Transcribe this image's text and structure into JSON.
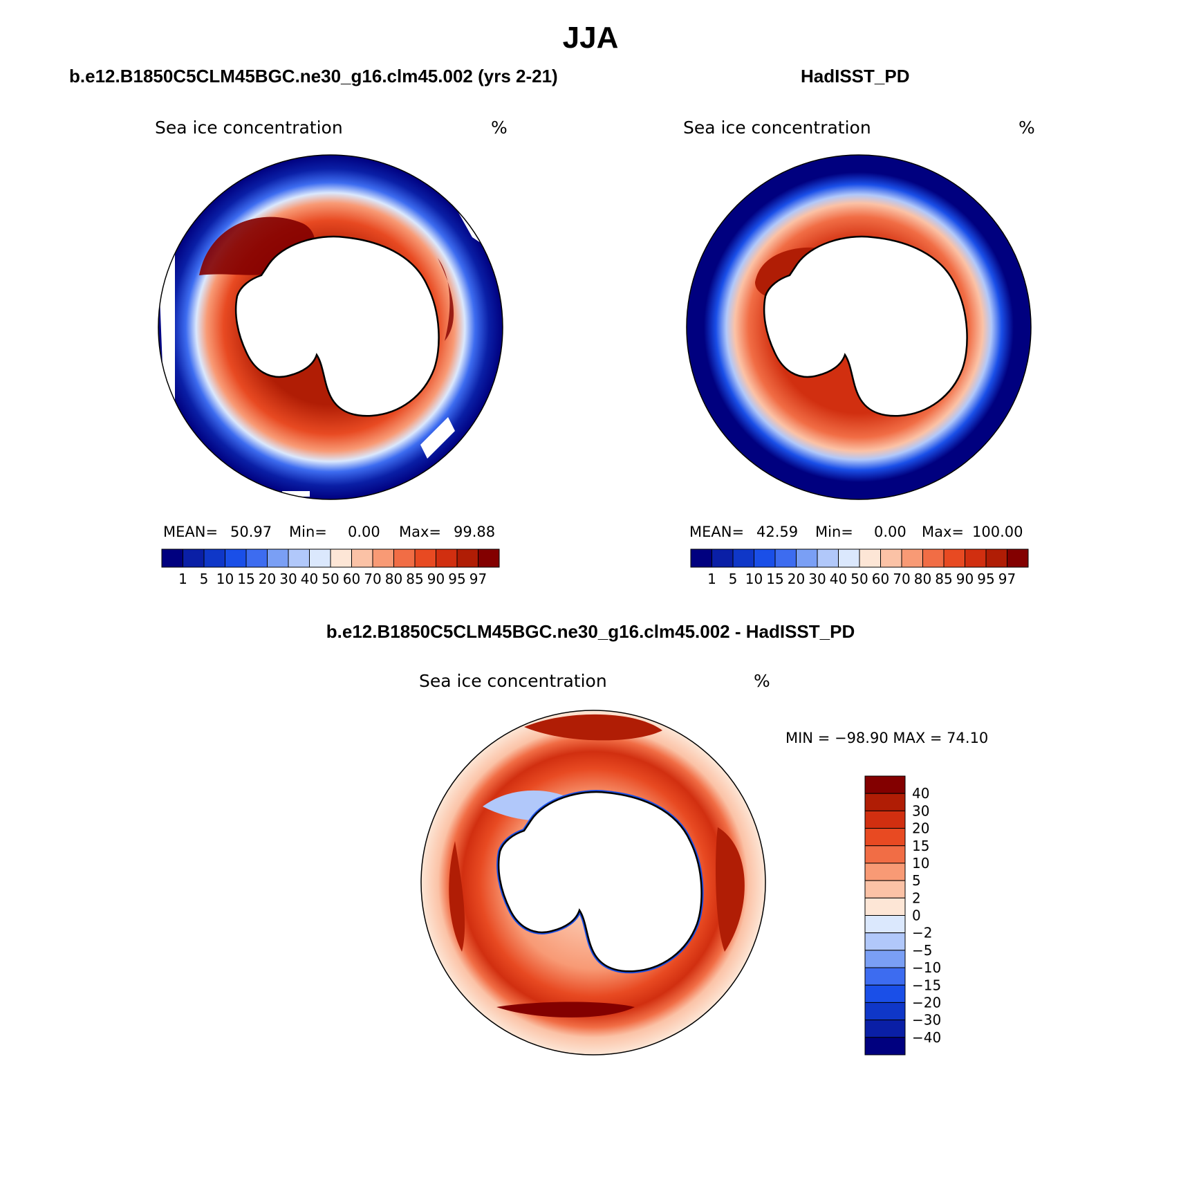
{
  "page": {
    "season": "JJA"
  },
  "palette": {
    "levels": [
      "#00007f",
      "#0a1fa6",
      "#0f37c8",
      "#1a4fe8",
      "#3d6cf0",
      "#7a9ff5",
      "#b1c8fa",
      "#dbe8fd",
      "#fde6d6",
      "#fbc2a6",
      "#f89a75",
      "#f16d45",
      "#e84a22",
      "#d12f10",
      "#b01d05",
      "#830000"
    ],
    "diff_levels": [
      "#830000",
      "#b01d05",
      "#d12f10",
      "#e84a22",
      "#f16d45",
      "#f89a75",
      "#fbc2a6",
      "#fde6d6",
      "#dbe8fd",
      "#b1c8fa",
      "#7a9ff5",
      "#3d6cf0",
      "#1a4fe8",
      "#0f37c8",
      "#0a1fa6",
      "#00007f"
    ]
  },
  "panels": [
    {
      "case_title": "b.e12.B1850C5CLM45BGC.ne30_g16.clm45.002 (yrs 2-21)",
      "var_label": "Sea ice concentration",
      "units": "%",
      "stats": {
        "mean_label": "MEAN=",
        "mean": "50.97",
        "min_label": "Min=",
        "min": "0.00",
        "max_label": "Max=",
        "max": "99.88"
      },
      "colorbar_ticks": [
        "1",
        "5",
        "10",
        "15",
        "20",
        "30",
        "40",
        "50",
        "60",
        "70",
        "80",
        "85",
        "90",
        "95",
        "97"
      ]
    },
    {
      "case_title": "HadISST_PD",
      "var_label": "Sea ice concentration",
      "units": "%",
      "stats": {
        "mean_label": "MEAN=",
        "mean": "42.59",
        "min_label": "Min=",
        "min": "0.00",
        "max_label": "Max=",
        "max": "100.00"
      },
      "colorbar_ticks": [
        "1",
        "5",
        "10",
        "15",
        "20",
        "30",
        "40",
        "50",
        "60",
        "70",
        "80",
        "85",
        "90",
        "95",
        "97"
      ]
    }
  ],
  "diff_panel": {
    "case_title": "b.e12.B1850C5CLM45BGC.ne30_g16.clm45.002 - HadISST_PD",
    "var_label": "Sea ice concentration",
    "units": "%",
    "min_max": "MIN = −98.90 MAX =   74.10",
    "colorbar_ticks": [
      "40",
      "30",
      "20",
      "15",
      "10",
      "5",
      "2",
      "0",
      "−2",
      "−5",
      "−10",
      "−15",
      "−20",
      "−30",
      "−40"
    ]
  },
  "map_icons": [
    "antarctica-polar-map-icon"
  ]
}
